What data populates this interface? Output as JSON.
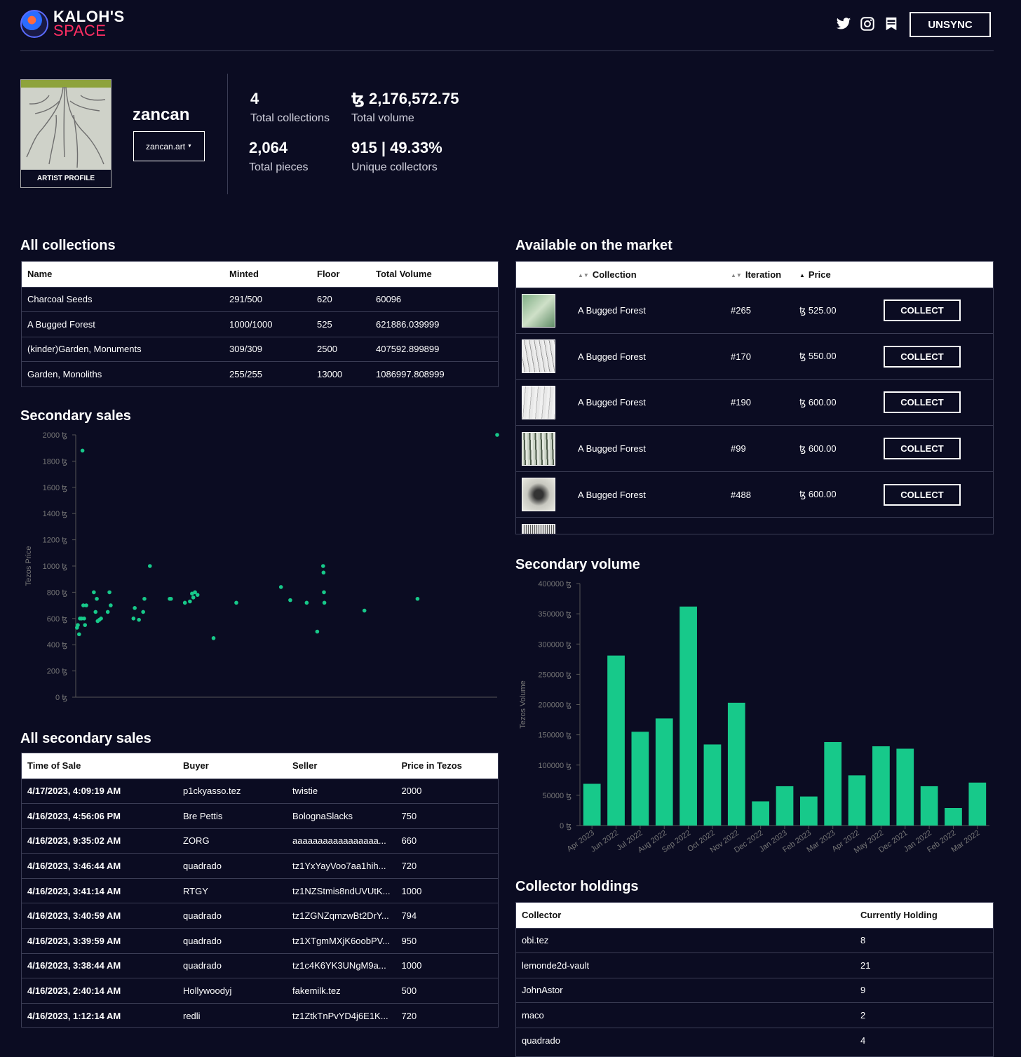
{
  "header": {
    "logo_line1": "KALOH'S",
    "logo_line2": "SPACE",
    "unsync_label": "UNSYNC"
  },
  "profile": {
    "avatar_label": "ARTIST PROFILE",
    "username": "zancan",
    "site": "zancan.art",
    "stats": [
      {
        "value": "4",
        "label": "Total collections"
      },
      {
        "value": "ꜩ 2,176,572.75",
        "label": "Total volume"
      },
      {
        "value": "2,064",
        "label": "Total pieces"
      },
      {
        "value": "915 | 49.33%",
        "label": "Unique collectors"
      }
    ]
  },
  "all_collections": {
    "title": "All collections",
    "headers": [
      "Name",
      "Minted",
      "Floor",
      "Total Volume"
    ],
    "rows": [
      [
        "Charcoal Seeds",
        "291/500",
        "620",
        "60096"
      ],
      [
        "A Bugged Forest",
        "1000/1000",
        "525",
        "621886.039999"
      ],
      [
        "(kinder)Garden, Monuments",
        "309/309",
        "2500",
        "407592.899899"
      ],
      [
        "Garden, Monoliths",
        "255/255",
        "13000",
        "1086997.808999"
      ]
    ]
  },
  "market": {
    "title": "Available on the market",
    "headers": [
      "Collection",
      "Iteration",
      "Price"
    ],
    "rows": [
      {
        "collection": "A Bugged Forest",
        "iteration": "#265",
        "price": "ꜩ 525.00",
        "button": "COLLECT"
      },
      {
        "collection": "A Bugged Forest",
        "iteration": "#170",
        "price": "ꜩ 550.00",
        "button": "COLLECT"
      },
      {
        "collection": "A Bugged Forest",
        "iteration": "#190",
        "price": "ꜩ 600.00",
        "button": "COLLECT"
      },
      {
        "collection": "A Bugged Forest",
        "iteration": "#99",
        "price": "ꜩ 600.00",
        "button": "COLLECT"
      },
      {
        "collection": "A Bugged Forest",
        "iteration": "#488",
        "price": "ꜩ 600.00",
        "button": "COLLECT"
      },
      {
        "collection": "",
        "iteration": "",
        "price": "",
        "button": ""
      }
    ]
  },
  "secondary_sales": {
    "title": "Secondary sales",
    "chart_data": {
      "type": "scatter",
      "ylabel": "Tezos Price",
      "ylim": [
        0,
        2000
      ],
      "yticks": [
        "0 ꜩ",
        "200 ꜩ",
        "400 ꜩ",
        "600 ꜩ",
        "800 ꜩ",
        "1000 ꜩ",
        "1200 ꜩ",
        "1400 ꜩ",
        "1600 ꜩ",
        "1800 ꜩ",
        "2000 ꜩ"
      ],
      "xlim": [
        0,
        100
      ],
      "points": [
        [
          0.3,
          530
        ],
        [
          0.5,
          550
        ],
        [
          0.8,
          480
        ],
        [
          1.0,
          600
        ],
        [
          1.4,
          600
        ],
        [
          1.8,
          700
        ],
        [
          2.0,
          600
        ],
        [
          2.2,
          550
        ],
        [
          2.5,
          700
        ],
        [
          1.6,
          1880
        ],
        [
          4.3,
          800
        ],
        [
          4.7,
          650
        ],
        [
          5.0,
          750
        ],
        [
          5.2,
          580
        ],
        [
          5.6,
          590
        ],
        [
          6.0,
          600
        ],
        [
          7.6,
          650
        ],
        [
          8.0,
          800
        ],
        [
          8.3,
          700
        ],
        [
          13.7,
          600
        ],
        [
          14.0,
          680
        ],
        [
          15.0,
          590
        ],
        [
          16.0,
          650
        ],
        [
          16.3,
          750
        ],
        [
          17.6,
          1000
        ],
        [
          22.3,
          750
        ],
        [
          22.6,
          750
        ],
        [
          25.9,
          720
        ],
        [
          27.1,
          730
        ],
        [
          27.6,
          790
        ],
        [
          27.9,
          760
        ],
        [
          28.3,
          800
        ],
        [
          28.9,
          780
        ],
        [
          32.7,
          450
        ],
        [
          38.1,
          720
        ],
        [
          48.7,
          840
        ],
        [
          50.9,
          740
        ],
        [
          54.8,
          720
        ],
        [
          57.3,
          500
        ],
        [
          58.7,
          1000
        ],
        [
          58.8,
          950
        ],
        [
          58.9,
          800
        ],
        [
          59.0,
          720
        ],
        [
          68.5,
          660
        ],
        [
          81.1,
          750
        ],
        [
          100,
          2000
        ]
      ]
    }
  },
  "secondary_volume": {
    "title": "Secondary volume",
    "chart_data": {
      "type": "bar",
      "ylabel": "Tezos Volume",
      "ylim": [
        0,
        400000
      ],
      "yticks": [
        "0 ꜩ",
        "50000 ꜩ",
        "100000 ꜩ",
        "150000 ꜩ",
        "200000 ꜩ",
        "250000 ꜩ",
        "300000 ꜩ",
        "350000 ꜩ",
        "400000 ꜩ"
      ],
      "categories": [
        "Apr 2023",
        "Jun 2022",
        "Jul 2022",
        "Aug 2022",
        "Sep 2022",
        "Oct 2022",
        "Nov 2022",
        "Dec 2022",
        "Jan 2023",
        "Feb 2023",
        "Mar 2023",
        "Apr 2022",
        "May 2022",
        "Dec 2021",
        "Jan 2022",
        "Feb 2022",
        "Mar 2022"
      ],
      "values": [
        69000,
        281000,
        155000,
        177000,
        362000,
        134000,
        203000,
        40000,
        65000,
        48000,
        138000,
        83000,
        131000,
        127000,
        65000,
        29000,
        71000
      ],
      "color": "#17c98a"
    }
  },
  "all_secondary_sales": {
    "title": "All secondary sales",
    "headers": [
      "Time of Sale",
      "Buyer",
      "Seller",
      "Price in Tezos"
    ],
    "rows": [
      [
        "4/17/2023, 4:09:19 AM",
        "p1ckyasso.tez",
        "twistie",
        "2000"
      ],
      [
        "4/16/2023, 4:56:06 PM",
        "Bre Pettis",
        "BolognaSlacks",
        "750"
      ],
      [
        "4/16/2023, 9:35:02 AM",
        "ZORG",
        "aaaaaaaaaaaaaaaaa...",
        "660"
      ],
      [
        "4/16/2023, 3:46:44 AM",
        "quadrado",
        "tz1YxYayVoo7aa1hih...",
        "720"
      ],
      [
        "4/16/2023, 3:41:14 AM",
        "RTGY",
        "tz1NZStmis8ndUVUtK...",
        "1000"
      ],
      [
        "4/16/2023, 3:40:59 AM",
        "quadrado",
        "tz1ZGNZqmzwBt2DrY...",
        "794"
      ],
      [
        "4/16/2023, 3:39:59 AM",
        "quadrado",
        "tz1XTgmMXjK6oobPV...",
        "950"
      ],
      [
        "4/16/2023, 3:38:44 AM",
        "quadrado",
        "tz1c4K6YK3UNgM9a...",
        "1000"
      ],
      [
        "4/16/2023, 2:40:14 AM",
        "Hollywoodyj",
        "fakemilk.tez",
        "500"
      ],
      [
        "4/16/2023, 1:12:14 AM",
        "redli",
        "tz1ZtkTnPvYD4j6E1K...",
        "720"
      ]
    ]
  },
  "collector_holdings": {
    "title": "Collector holdings",
    "headers": [
      "Collector",
      "Currently Holding"
    ],
    "rows": [
      [
        "obi.tez",
        "8"
      ],
      [
        "lemonde2d-vault",
        "21"
      ],
      [
        "JohnAstor",
        "9"
      ],
      [
        "maco",
        "2"
      ],
      [
        "quadrado",
        "4"
      ]
    ]
  }
}
